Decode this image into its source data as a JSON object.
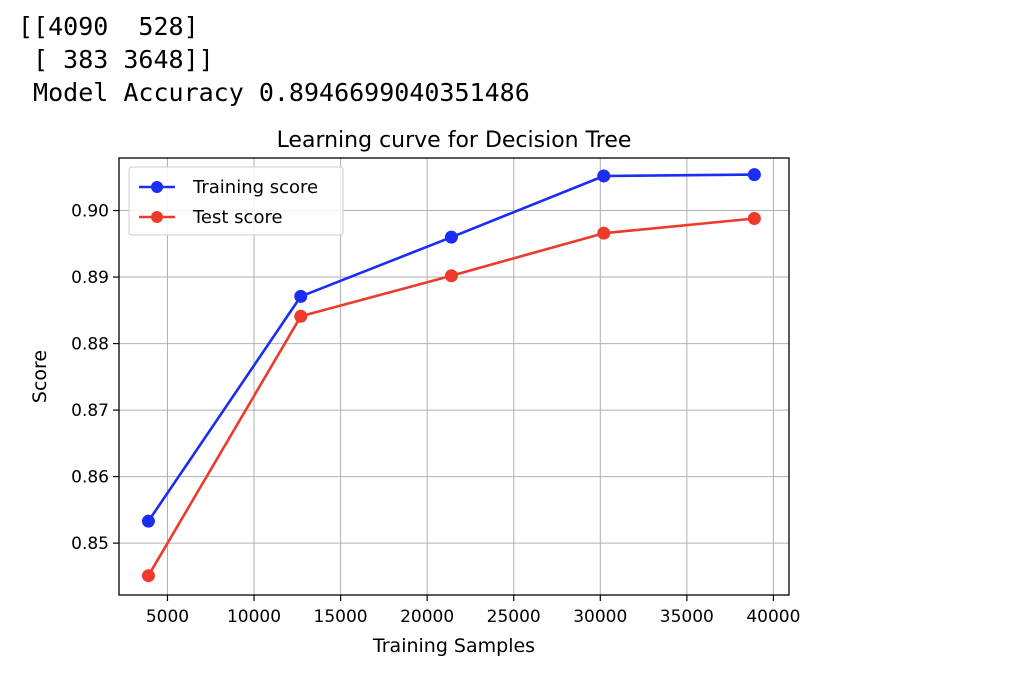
{
  "output": {
    "lines": [
      "[[4090  528]",
      " [ 383 3648]]",
      " Model Accuracy 0.8946699040351486"
    ]
  },
  "chart_data": {
    "type": "line",
    "title": "Learning curve for Decision Tree",
    "xlabel": "Training Samples",
    "ylabel": "Score",
    "xlim": [
      2200,
      40900
    ],
    "ylim": [
      0.8422,
      0.9079
    ],
    "xticks": [
      5000,
      10000,
      15000,
      20000,
      25000,
      30000,
      35000,
      40000
    ],
    "xtick_labels": [
      "5000",
      "10000",
      "15000",
      "20000",
      "25000",
      "30000",
      "35000",
      "40000"
    ],
    "yticks": [
      0.85,
      0.86,
      0.87,
      0.88,
      0.89,
      0.9
    ],
    "ytick_labels": [
      "0.85",
      "0.86",
      "0.87",
      "0.88",
      "0.89",
      "0.90"
    ],
    "grid": true,
    "legend_position": "top-left",
    "x": [
      3900,
      12700,
      21400,
      30200,
      38900
    ],
    "series": [
      {
        "name": "Training score",
        "color": "#1b2cf3",
        "values": [
          0.8533,
          0.8871,
          0.896,
          0.9052,
          0.9054
        ]
      },
      {
        "name": "Test score",
        "color": "#ee3a2a",
        "values": [
          0.8451,
          0.8841,
          0.8902,
          0.8966,
          0.8988
        ]
      }
    ]
  }
}
